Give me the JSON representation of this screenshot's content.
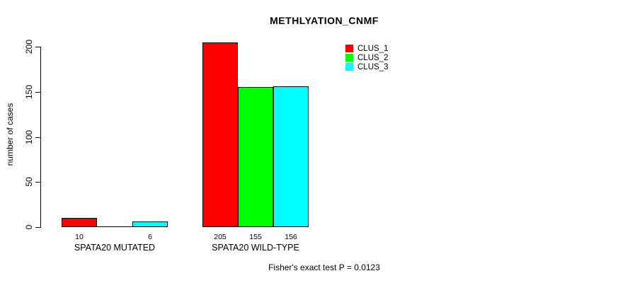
{
  "title": "METHLYATION_CNMF",
  "ylabel": "number of cases",
  "footnote": "Fisher's exact test P = 0.0123",
  "legend": {
    "entries": [
      {
        "label": "CLUS_1",
        "color": "#ff0000"
      },
      {
        "label": "CLUS_2",
        "color": "#00ff00"
      },
      {
        "label": "CLUS_3",
        "color": "#00ffff"
      }
    ]
  },
  "chart_data": {
    "type": "bar",
    "title": "METHLYATION_CNMF",
    "xlabel": "",
    "ylabel": "number of cases",
    "categories": [
      "SPATA20 MUTATED",
      "SPATA20 WILD-TYPE"
    ],
    "series": [
      {
        "name": "CLUS_1",
        "color": "#ff0000",
        "values": [
          10,
          205
        ]
      },
      {
        "name": "CLUS_2",
        "color": "#00ff00",
        "values": [
          0,
          155
        ]
      },
      {
        "name": "CLUS_3",
        "color": "#00ffff",
        "values": [
          6,
          156
        ]
      }
    ],
    "bar_value_labels": [
      [
        "10",
        "",
        "6"
      ],
      [
        "205",
        "155",
        "156"
      ]
    ],
    "ylim": [
      0,
      200
    ],
    "yticks": [
      0,
      50,
      100,
      150,
      200
    ],
    "grid": false,
    "legend_position": "top-right",
    "bar_border_color": "#000000",
    "annotation": "Fisher's exact test P = 0.0123"
  }
}
